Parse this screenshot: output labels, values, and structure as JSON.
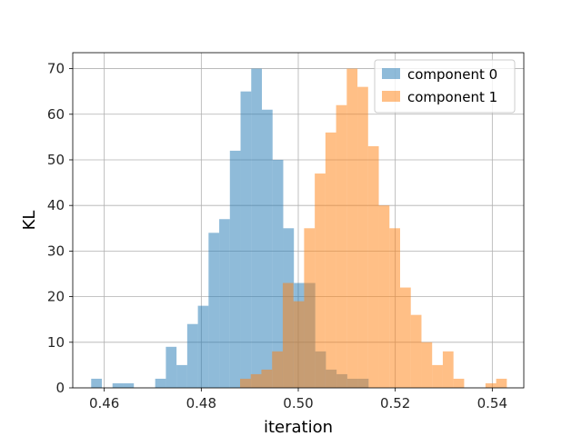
{
  "chart_data": {
    "type": "histogram",
    "xlabel": "iteration",
    "ylabel": "KL",
    "xlim": [
      0.4535,
      0.5465
    ],
    "ylim": [
      0,
      73.5
    ],
    "grid": true,
    "legend_position": "top-right",
    "bin_width": 0.0022,
    "x_ticks": [
      {
        "value": 0.46,
        "label": "0.46"
      },
      {
        "value": 0.48,
        "label": "0.48"
      },
      {
        "value": 0.5,
        "label": "0.50"
      },
      {
        "value": 0.52,
        "label": "0.52"
      },
      {
        "value": 0.54,
        "label": "0.54"
      }
    ],
    "y_ticks": [
      {
        "value": 0,
        "label": "0"
      },
      {
        "value": 10,
        "label": "10"
      },
      {
        "value": 20,
        "label": "20"
      },
      {
        "value": 30,
        "label": "30"
      },
      {
        "value": 40,
        "label": "40"
      },
      {
        "value": 50,
        "label": "50"
      },
      {
        "value": 60,
        "label": "60"
      },
      {
        "value": 70,
        "label": "70"
      }
    ],
    "series": [
      {
        "name": "component 0",
        "color": "#1f77b4",
        "opacity": 0.5,
        "bin_starts": [
          0.4573,
          0.4595,
          0.4617,
          0.4639,
          0.4661,
          0.4683,
          0.4705,
          0.4727,
          0.4749,
          0.4771,
          0.4793,
          0.4815,
          0.4837,
          0.4859,
          0.4881,
          0.4903,
          0.4925,
          0.4947,
          0.4969,
          0.4991,
          0.5013,
          0.5035,
          0.5057,
          0.5079,
          0.5101,
          0.5123
        ],
        "counts": [
          2,
          0,
          1,
          1,
          0,
          0,
          2,
          9,
          5,
          14,
          18,
          34,
          37,
          52,
          65,
          70,
          61,
          50,
          35,
          23,
          23,
          8,
          4,
          3,
          2,
          2
        ]
      },
      {
        "name": "component 1",
        "color": "#ff7f0e",
        "opacity": 0.5,
        "bin_starts": [
          0.488,
          0.4902,
          0.4924,
          0.4946,
          0.4968,
          0.499,
          0.5012,
          0.5034,
          0.5056,
          0.5078,
          0.51,
          0.5122,
          0.5144,
          0.5166,
          0.5188,
          0.521,
          0.5232,
          0.5254,
          0.5276,
          0.5298,
          0.532,
          0.5342,
          0.5364,
          0.5386,
          0.5408
        ],
        "counts": [
          2,
          3,
          4,
          8,
          23,
          19,
          35,
          47,
          56,
          62,
          70,
          66,
          53,
          40,
          35,
          22,
          16,
          10,
          5,
          8,
          2,
          0,
          0,
          1,
          2
        ]
      }
    ]
  }
}
